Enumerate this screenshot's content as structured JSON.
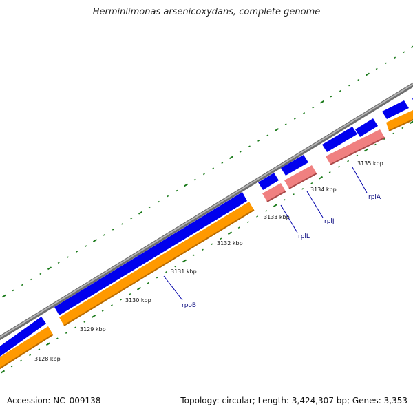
{
  "title": "Herminiimonas arsenicoxydans, complete genome",
  "footer": {
    "accession": "Accession: NC_009138",
    "topology": "Topology: circular; Length: 3,424,307 bp; Genes: 3,353"
  },
  "ticks": [
    "3128 kbp",
    "3129 kbp",
    "3130 kbp",
    "3131 kbp",
    "3132 kbp",
    "3133 kbp",
    "3134 kbp",
    "3135 kbp"
  ],
  "gene_labels": [
    "rpoB",
    "rplL",
    "rplJ",
    "rplA"
  ],
  "colors": {
    "backbone": "#8c8c8c",
    "cds": "#0000ee",
    "gene_orange": "#ff9900",
    "gene_pink": "#f08080",
    "tick_green": "#1a7a1a",
    "label_line": "#0000aa"
  }
}
